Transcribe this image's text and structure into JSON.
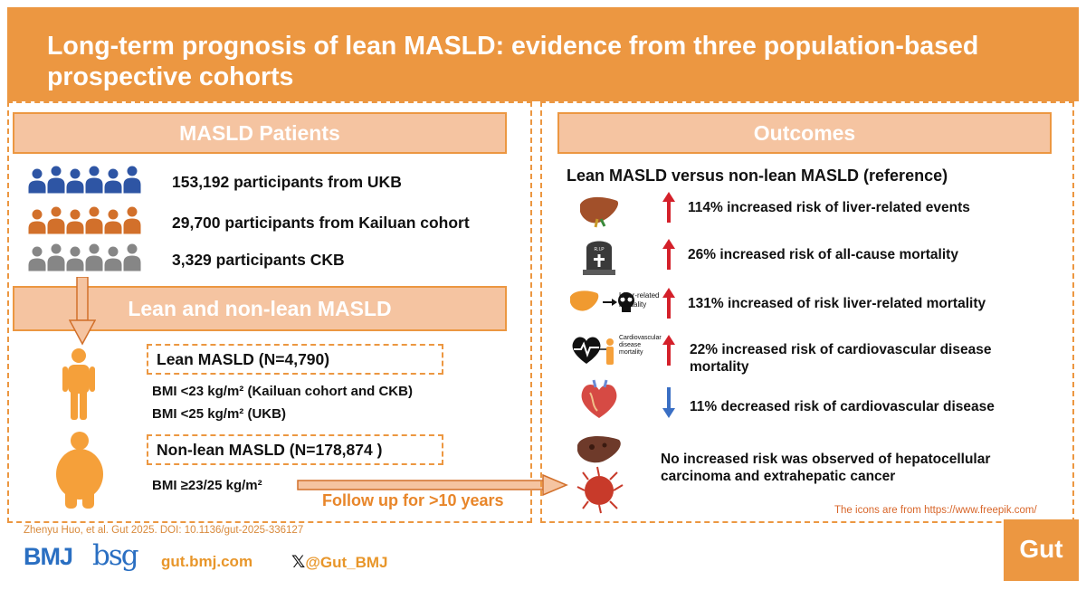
{
  "header": {
    "title": "Long-term prognosis of lean MASLD: evidence from three population-based prospective cohorts"
  },
  "left": {
    "band_patients": "MASLD Patients",
    "cohorts": [
      {
        "label": "153,192 participants from UKB",
        "color": "#2e55a4"
      },
      {
        "label": "29,700 participants from Kailuan cohort",
        "color": "#d2702b"
      },
      {
        "label": "3,329 participants CKB",
        "color": "#868686"
      }
    ],
    "band_lean": "Lean and non-lean MASLD",
    "lean": {
      "title": "Lean MASLD (N=4,790)",
      "bmi1": "BMI <23 kg/m² (Kailuan cohort and CKB)",
      "bmi2": "BMI <25 kg/m² (UKB)"
    },
    "nonlean": {
      "title": "Non-lean MASLD (N=178,874 )",
      "bmi": "BMI ≥23/25 kg/m²"
    },
    "follow_up": "Follow up for >10 years"
  },
  "right": {
    "band_outcomes": "Outcomes",
    "comparison": "Lean MASLD versus non-lean MASLD (reference)",
    "outcomes": [
      {
        "text": "114% increased risk of liver-related events",
        "direction": "up",
        "icon": "liver-icon"
      },
      {
        "text": "26% increased risk of all-cause mortality",
        "direction": "up",
        "icon": "tombstone-icon",
        "icon_label": "R.I.P"
      },
      {
        "text": "131% increased of risk liver-related mortality",
        "direction": "up",
        "icon": "liver-mortality-icon",
        "icon_label": "Liver-related mortality"
      },
      {
        "text": "22% increased risk of cardiovascular disease mortality",
        "direction": "up",
        "icon": "cardio-mortality-icon",
        "icon_label": "Cardiovascular disease mortality"
      },
      {
        "text": "11% decreased risk of cardiovascular disease",
        "direction": "down",
        "icon": "heart-icon"
      },
      {
        "text": "No increased risk was observed of hepatocellular carcinoma and extrahepatic cancer",
        "direction": "none",
        "icon": "cancer-icon"
      }
    ],
    "credit": "The icons are from https://www.freepik.com/"
  },
  "footer": {
    "citation": "Zhenyu Huo, et al. Gut 2025. DOI: 10.1136/gut-2025-336127",
    "bmj": "BMJ",
    "bsg": "bsg",
    "url": "gut.bmj.com",
    "x_handle": "@Gut_BMJ",
    "gut": "Gut"
  },
  "colors": {
    "accent": "#ec9741",
    "band_fill": "#f5c4a1",
    "up_arrow": "#d4202a",
    "down_arrow": "#3a6fc4"
  }
}
